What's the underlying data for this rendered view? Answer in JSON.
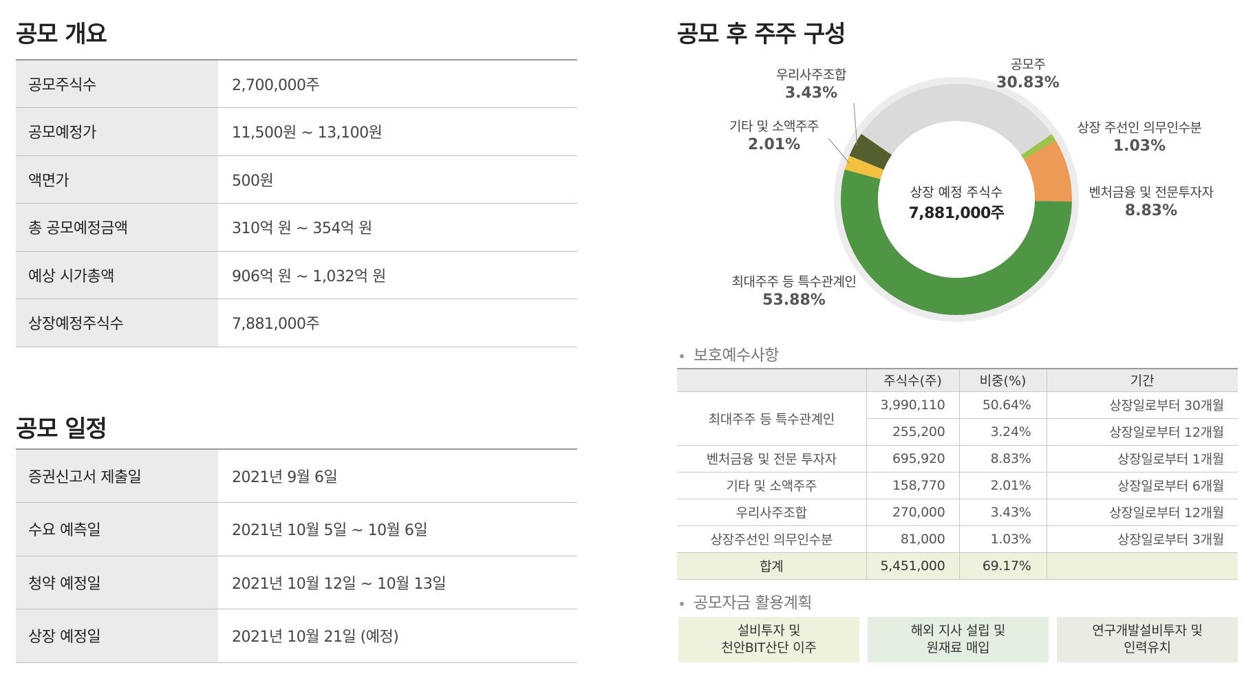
{
  "overview": {
    "title": "공모 개요",
    "rows": [
      {
        "label": "공모주식수",
        "value": "2,700,000주"
      },
      {
        "label": "공모예정가",
        "value": "11,500원 ~ 13,100원"
      },
      {
        "label": "액면가",
        "value": "500원"
      },
      {
        "label": "총 공모예정금액",
        "value": "310억 원 ~ 354억 원"
      },
      {
        "label": "예상 시가총액",
        "value": "906억 원 ~ 1,032억 원"
      },
      {
        "label": "상장예정주식수",
        "value": "7,881,000주"
      }
    ]
  },
  "schedule": {
    "title": "공모 일정",
    "rows": [
      {
        "label": "증권신고서 제출일",
        "value": "2021년 9월 6일"
      },
      {
        "label": "수요 예측일",
        "value": "2021년 10월 5일 ~ 10월 6일"
      },
      {
        "label": "청약 예정일",
        "value": "2021년 10월 12일 ~ 10월 13일"
      },
      {
        "label": "상장 예정일",
        "value": "2021년 10월 21일 (예정)"
      }
    ]
  },
  "chart_data": {
    "type": "pie",
    "title": "공모 후 주주 구성",
    "center_label": "상장 예정 주식수",
    "center_value": "7,881,000주",
    "series": [
      {
        "name": "공모주",
        "value": 30.83,
        "label": "30.83%",
        "color": "#dadada"
      },
      {
        "name": "상장 주선인 의무인수분",
        "value": 1.03,
        "label": "1.03%",
        "color": "#9bc54a"
      },
      {
        "name": "벤처금융 및 전문투자자",
        "value": 8.83,
        "label": "8.83%",
        "color": "#ec9a55"
      },
      {
        "name": "최대주주 등 특수관계인",
        "value": 53.88,
        "label": "53.88%",
        "color": "#4e9643"
      },
      {
        "name": "기타 및 소액주주",
        "value": 2.01,
        "label": "2.01%",
        "color": "#f2c13d"
      },
      {
        "name": "우리사주조합",
        "value": 3.43,
        "label": "3.43%",
        "color": "#535f2c"
      }
    ]
  },
  "lockup": {
    "title": "보호예수사항",
    "headers": [
      "",
      "주식수(주)",
      "비중(%)",
      "기간"
    ],
    "group_label": "최대주주 등 특수관계인",
    "group_rows": [
      {
        "shares": "3,990,110",
        "ratio": "50.64%",
        "period": "상장일로부터 30개월"
      },
      {
        "shares": "255,200",
        "ratio": "3.24%",
        "period": "상장일로부터 12개월"
      }
    ],
    "rows": [
      {
        "holder": "벤처금융 및 전문 투자자",
        "shares": "695,920",
        "ratio": "8.83%",
        "period": "상장일로부터 1개월"
      },
      {
        "holder": "기타 및 소액주주",
        "shares": "158,770",
        "ratio": "2.01%",
        "period": "상장일로부터 6개월"
      },
      {
        "holder": "우리사주조합",
        "shares": "270,000",
        "ratio": "3.43%",
        "period": "상장일로부터 12개월"
      },
      {
        "holder": "상장주선인 의무인수분",
        "shares": "81,000",
        "ratio": "1.03%",
        "period": "상장일로부터 3개월"
      }
    ],
    "total": {
      "holder": "합계",
      "shares": "5,451,000",
      "ratio": "69.17%",
      "period": ""
    }
  },
  "funds": {
    "title": "공모자금 활용계획",
    "items": [
      {
        "line1": "설비투자 및",
        "line2": "천안BIT산단 이주",
        "color": "#eef2dc"
      },
      {
        "line1": "해외 지사 설립 및",
        "line2": "원재료 매입",
        "color": "#e4efe2"
      },
      {
        "line1": "연구개발설비투자 및",
        "line2": "인력유치",
        "color": "#ebebe3"
      }
    ]
  }
}
